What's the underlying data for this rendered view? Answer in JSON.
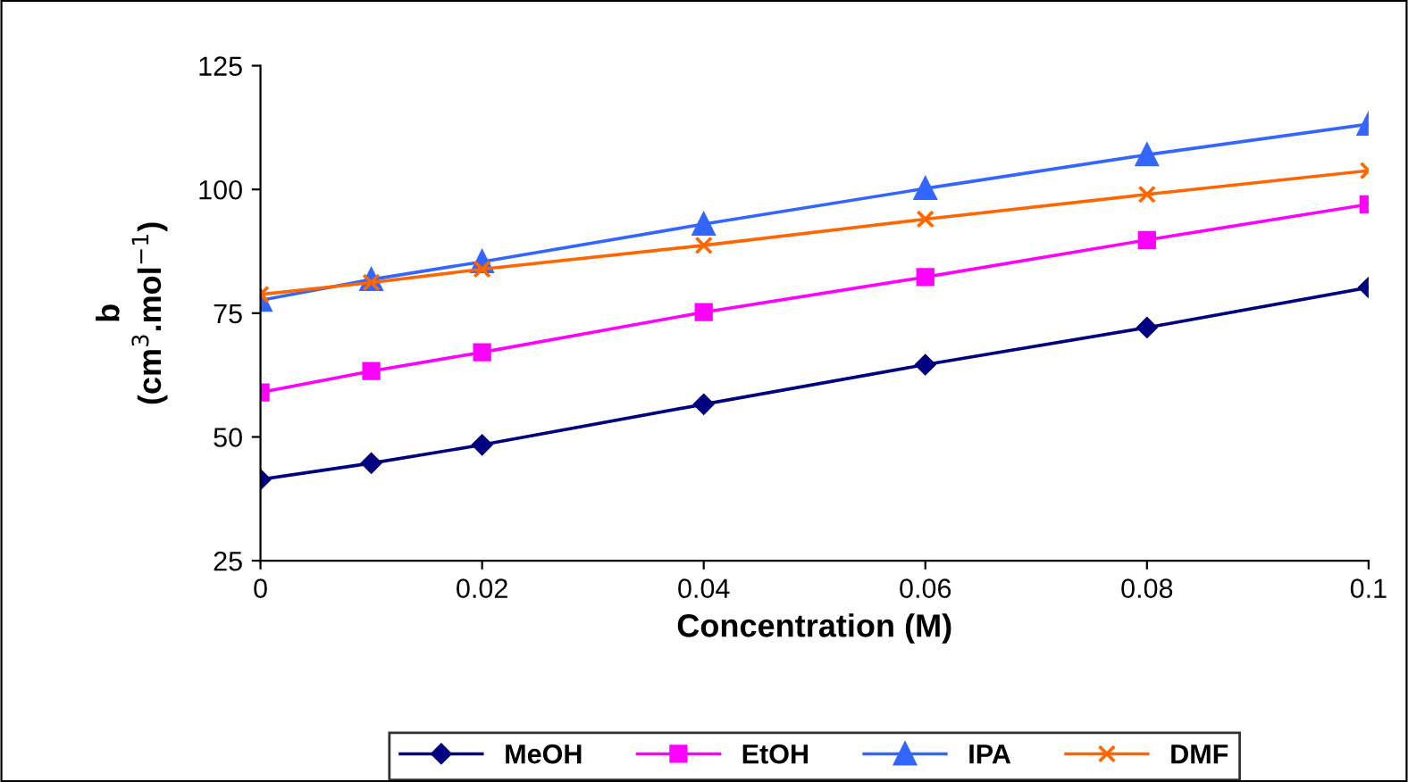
{
  "chart_data": {
    "type": "line",
    "xlabel": "Concentration (M)",
    "ylabel": "b\n(cm$^{3}$.mol$^{−1}$)",
    "x": [
      0,
      0.01,
      0.02,
      0.04,
      0.06,
      0.08,
      0.1
    ],
    "series": [
      {
        "name": "MeOH",
        "color": "#000080",
        "marker": "diamond",
        "values": [
          41.4,
          44.7,
          48.4,
          56.6,
          64.6,
          72.1,
          80.2
        ]
      },
      {
        "name": "EtOH",
        "color": "#ff00ff",
        "marker": "square",
        "values": [
          59.0,
          63.3,
          67.1,
          75.2,
          82.3,
          89.8,
          97.0
        ]
      },
      {
        "name": "IPA",
        "color": "#3366ff",
        "marker": "triangle",
        "values": [
          77.6,
          81.8,
          85.4,
          93.0,
          100.2,
          107.0,
          113.2
        ]
      },
      {
        "name": "DMF",
        "color": "#ff6600",
        "marker": "cross",
        "values": [
          78.8,
          81.2,
          83.9,
          88.7,
          94.0,
          99.0,
          103.8
        ]
      }
    ],
    "xlim": [
      0,
      0.1
    ],
    "xticks": [
      0,
      0.02,
      0.04,
      0.06,
      0.08,
      0.1
    ],
    "ylim": [
      25,
      125
    ],
    "yticks": [
      25,
      50,
      75,
      100,
      125
    ],
    "grid": false,
    "legend": "bottom",
    "line_style": "solid"
  }
}
